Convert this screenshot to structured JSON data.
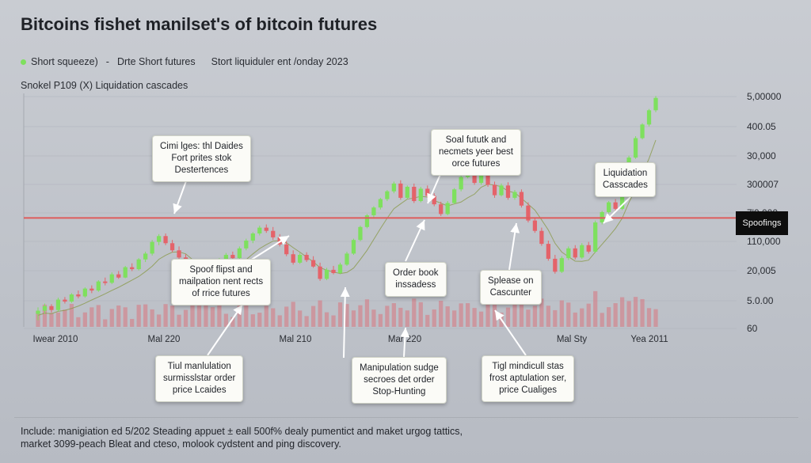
{
  "title": "Bitcoins fishet manilset's  of bitcoin futures",
  "legend": [
    "Short squeeze)",
    "Drte Short futures",
    "Stort liquiduler ent /onday 2023"
  ],
  "subtitle": "Snokel P109 (X) Liquidation cascades",
  "colors": {
    "up": "#7ee05e",
    "down": "#e4636a",
    "volume": "#d9747d",
    "resistance": "#de5b5b",
    "ma": "#8a9a4a"
  },
  "chart_data": {
    "type": "candlestick",
    "x_tick_labels": [
      "Iwear 2010",
      "Mal 220",
      "Mal 210",
      "Mar 220",
      "Mal Sty",
      "Yea 2011"
    ],
    "y_tick_labels": [
      "5,00000",
      "400.05",
      "30,000",
      "300007",
      "7'0.000",
      "110,000",
      "20,005",
      "5.0.00",
      "60"
    ],
    "ohlc_scale": "price tiers shown as y tick labels; values estimated relative to axis",
    "candles": [
      [
        2,
        3,
        1,
        2.5
      ],
      [
        2.5,
        3.6,
        2,
        3.2
      ],
      [
        3.2,
        3.5,
        2.2,
        2.6
      ],
      [
        2.6,
        4.5,
        2.4,
        4.2
      ],
      [
        4.2,
        4.6,
        3.6,
        3.9
      ],
      [
        3.9,
        5.2,
        3.7,
        5
      ],
      [
        5,
        5.6,
        4.4,
        4.7
      ],
      [
        4.7,
        6.1,
        4.5,
        5.9
      ],
      [
        5.9,
        6.4,
        5.2,
        5.6
      ],
      [
        5.6,
        7.2,
        5.4,
        7
      ],
      [
        7,
        7.6,
        6.4,
        6.8
      ],
      [
        6.8,
        8.4,
        6.6,
        8.1
      ],
      [
        8.1,
        8.6,
        7.4,
        7.6
      ],
      [
        7.6,
        9.4,
        7.5,
        9.2
      ],
      [
        9.2,
        9.8,
        8.6,
        8.9
      ],
      [
        8.9,
        10.6,
        8.7,
        10.4
      ],
      [
        10.4,
        11.6,
        10,
        11.3
      ],
      [
        11.3,
        13.4,
        11,
        13.1
      ],
      [
        13.1,
        14.3,
        12.6,
        14
      ],
      [
        14,
        14.4,
        12.6,
        12.9
      ],
      [
        12.9,
        13.4,
        11.5,
        11.8
      ],
      [
        11.8,
        12.4,
        10.4,
        10.7
      ],
      [
        10.7,
        11.2,
        9.1,
        9.4
      ],
      [
        9.4,
        10.1,
        7.6,
        7.9
      ],
      [
        7.9,
        8.4,
        3.4,
        3.8
      ],
      [
        3.8,
        8.2,
        3.6,
        7.9
      ],
      [
        7.9,
        9.4,
        7.6,
        9.1
      ],
      [
        9.1,
        10.6,
        8.8,
        10.4
      ],
      [
        10.4,
        11.4,
        9.9,
        11.1
      ],
      [
        11.1,
        11.6,
        10.3,
        10.6
      ],
      [
        10.6,
        12.4,
        10.4,
        12.1
      ],
      [
        12.1,
        13.6,
        11.8,
        13.3
      ],
      [
        13.3,
        14.6,
        12.9,
        14.4
      ],
      [
        14.4,
        15.6,
        14.1,
        15.3
      ],
      [
        15.3,
        15.8,
        14.5,
        14.8
      ],
      [
        14.8,
        15.4,
        13.4,
        13.8
      ],
      [
        13.8,
        14.3,
        12.4,
        12.7
      ],
      [
        12.7,
        13.2,
        10.9,
        11.2
      ],
      [
        11.2,
        11.8,
        9.6,
        9.9
      ],
      [
        9.9,
        11.4,
        9.7,
        11.1
      ],
      [
        11.1,
        11.5,
        10,
        10.3
      ],
      [
        10.3,
        10.9,
        9.1,
        9.3
      ],
      [
        9.3,
        9.9,
        7.1,
        7.4
      ],
      [
        7.4,
        9.1,
        7.2,
        8.8
      ],
      [
        8.8,
        9.4,
        8.1,
        8.3
      ],
      [
        8.3,
        9.9,
        8.1,
        9.6
      ],
      [
        9.6,
        11.6,
        9.4,
        11.3
      ],
      [
        11.3,
        13.6,
        11.1,
        13.4
      ],
      [
        13.4,
        15.6,
        13.2,
        15.4
      ],
      [
        15.4,
        17.4,
        15.2,
        17.2
      ],
      [
        17.2,
        18.6,
        16.9,
        18.4
      ],
      [
        18.4,
        19.9,
        18.1,
        19.7
      ],
      [
        19.7,
        21.1,
        19.4,
        20.9
      ],
      [
        20.9,
        22.4,
        20.6,
        22.1
      ],
      [
        22.1,
        22.6,
        19.6,
        19.9
      ],
      [
        19.9,
        21.8,
        19.7,
        21.6
      ],
      [
        21.6,
        22.1,
        19.1,
        19.4
      ],
      [
        19.4,
        21.6,
        19.2,
        21.3
      ],
      [
        21.3,
        21.8,
        19.9,
        20.2
      ],
      [
        20.2,
        20.6,
        18.6,
        18.9
      ],
      [
        18.9,
        19.3,
        17.1,
        17.4
      ],
      [
        17.4,
        19.4,
        17.2,
        19.1
      ],
      [
        19.1,
        21.4,
        18.9,
        21.2
      ],
      [
        21.2,
        23.4,
        20.9,
        23.1
      ],
      [
        23.1,
        24.4,
        22.9,
        24.2
      ],
      [
        24.2,
        24.7,
        21.9,
        22.2
      ],
      [
        22.2,
        24.1,
        21.9,
        23.8
      ],
      [
        23.8,
        24.3,
        21.6,
        21.9
      ],
      [
        21.9,
        22.4,
        19.9,
        20.3
      ],
      [
        20.3,
        22.1,
        20.1,
        21.8
      ],
      [
        21.8,
        22.3,
        19.6,
        19.9
      ],
      [
        19.9,
        21.1,
        19.6,
        20.8
      ],
      [
        20.8,
        21.2,
        18.4,
        18.7
      ],
      [
        18.7,
        19.2,
        16.1,
        16.4
      ],
      [
        16.4,
        16.9,
        14.5,
        14.8
      ],
      [
        14.8,
        15.3,
        12.5,
        12.8
      ],
      [
        12.8,
        13.3,
        10.2,
        10.5
      ],
      [
        10.5,
        11.1,
        8.2,
        8.5
      ],
      [
        8.5,
        10.9,
        8.3,
        10.6
      ],
      [
        10.6,
        12.4,
        10.3,
        12.1
      ],
      [
        12.1,
        12.6,
        10.4,
        10.7
      ],
      [
        10.7,
        12.9,
        10.5,
        12.6
      ],
      [
        12.6,
        13.1,
        11.3,
        11.6
      ],
      [
        11.6,
        16.4,
        11.4,
        16.1
      ],
      [
        16.1,
        17.9,
        15.8,
        17.7
      ],
      [
        17.7,
        19.4,
        17.5,
        19.2
      ],
      [
        19.2,
        19.7,
        17.9,
        18.2
      ],
      [
        18.2,
        22.4,
        18,
        22.1
      ],
      [
        22.1,
        26.4,
        21.9,
        26.1
      ],
      [
        26.1,
        29.4,
        25.9,
        29.1
      ],
      [
        29.1,
        31.4,
        28.9,
        31.2
      ],
      [
        31.2,
        33.6,
        30.9,
        33.4
      ],
      [
        33.4,
        35.6,
        33.1,
        35.3
      ]
    ],
    "resistance_level": 16.8,
    "annotations": [
      "Cimi lges: thl Daides\nFort prites stok\nDestertences",
      "Spoof flipst and\nmailpation nent rects\nof rrice futures",
      "Tiul manlulation\nsurmisslstar order\nprice Lcaides",
      "Soal fututk and\nnecmets yeer best\norce futures",
      "Order book\ninssadess",
      "Manipulation sudge\nsecroes det order\nStop-Hunting",
      "Liquidation\nCasscades",
      "Splease on\nCascunter",
      "Tigl mindicull stas\nfrost aptulation ser,\nprice Cualiges"
    ],
    "price_tag": "Spoofings"
  },
  "footnote": "Include: manigiation ed 5/202 Steading appuet ± eall 500f% dealy pumentict and maket urgog tattics,\nmarket 3099-peach Bleat and cteso, molook cydstent and ping discovery."
}
